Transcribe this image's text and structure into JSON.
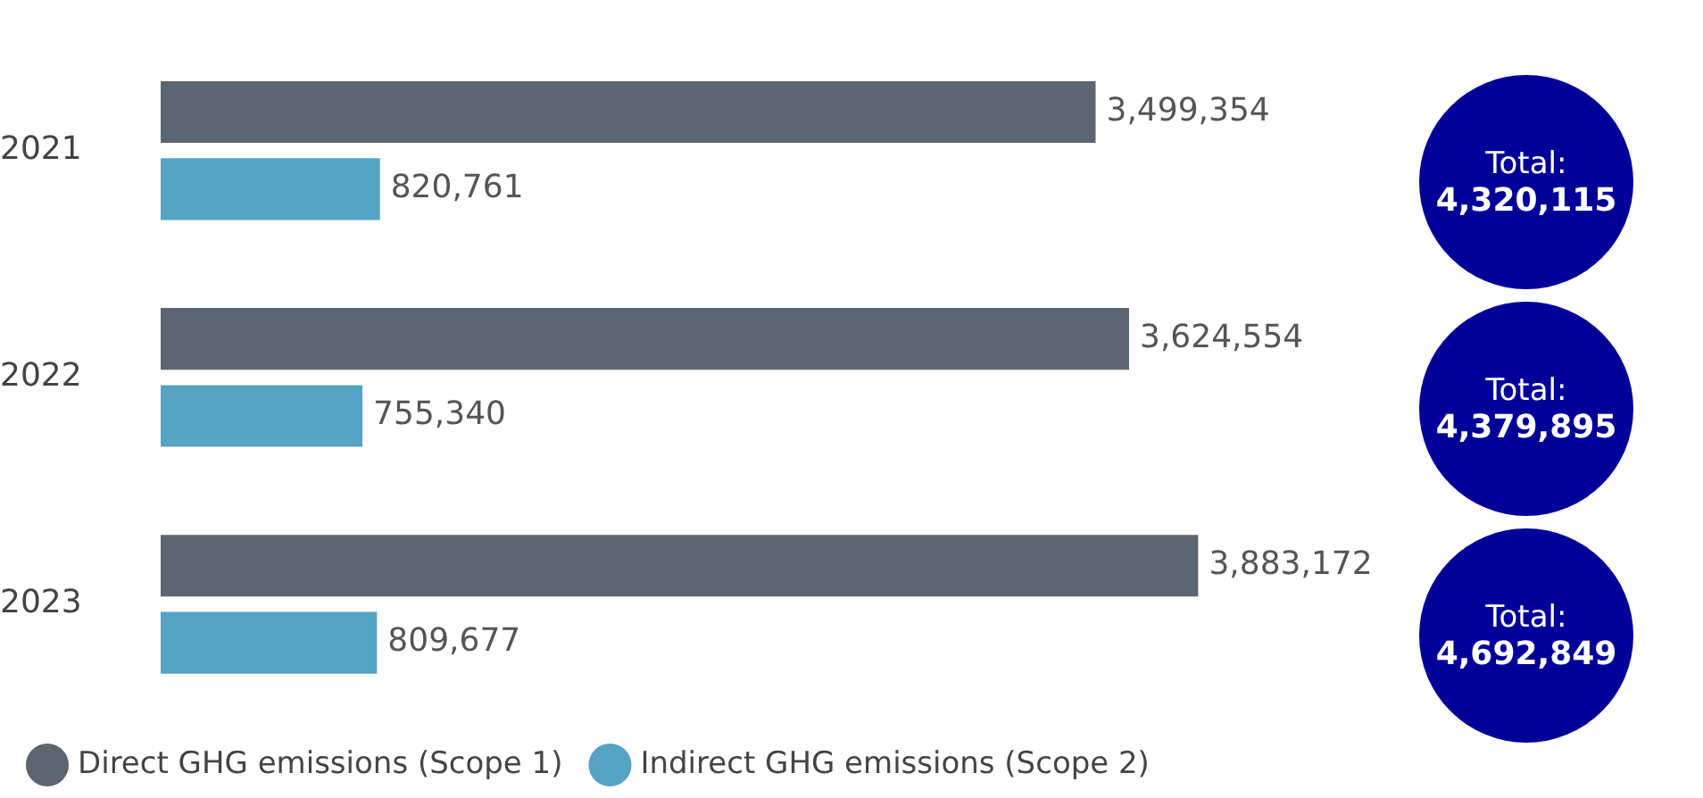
{
  "chart_data": {
    "type": "bar",
    "orientation": "horizontal",
    "categories": [
      "2021",
      "2022",
      "2023"
    ],
    "series": [
      {
        "name": "Direct GHG emissions (Scope 1)",
        "color": "#5c6670",
        "values": [
          3499354,
          3624554,
          3883172
        ],
        "value_labels": [
          "3,499,354",
          "3,624,554",
          "3,883,172"
        ]
      },
      {
        "name": "Indirect GHG emissions (Scope 2)",
        "color": "#56a3c4",
        "values": [
          820761,
          755340,
          809677
        ],
        "value_labels": [
          "820,761",
          "755,340",
          "809,677"
        ]
      }
    ],
    "annotations": [
      "Total: 4,320,115",
      "Total: 4,379,895",
      "Total: 4,692,849"
    ],
    "legend": "bottom left"
  }
}
